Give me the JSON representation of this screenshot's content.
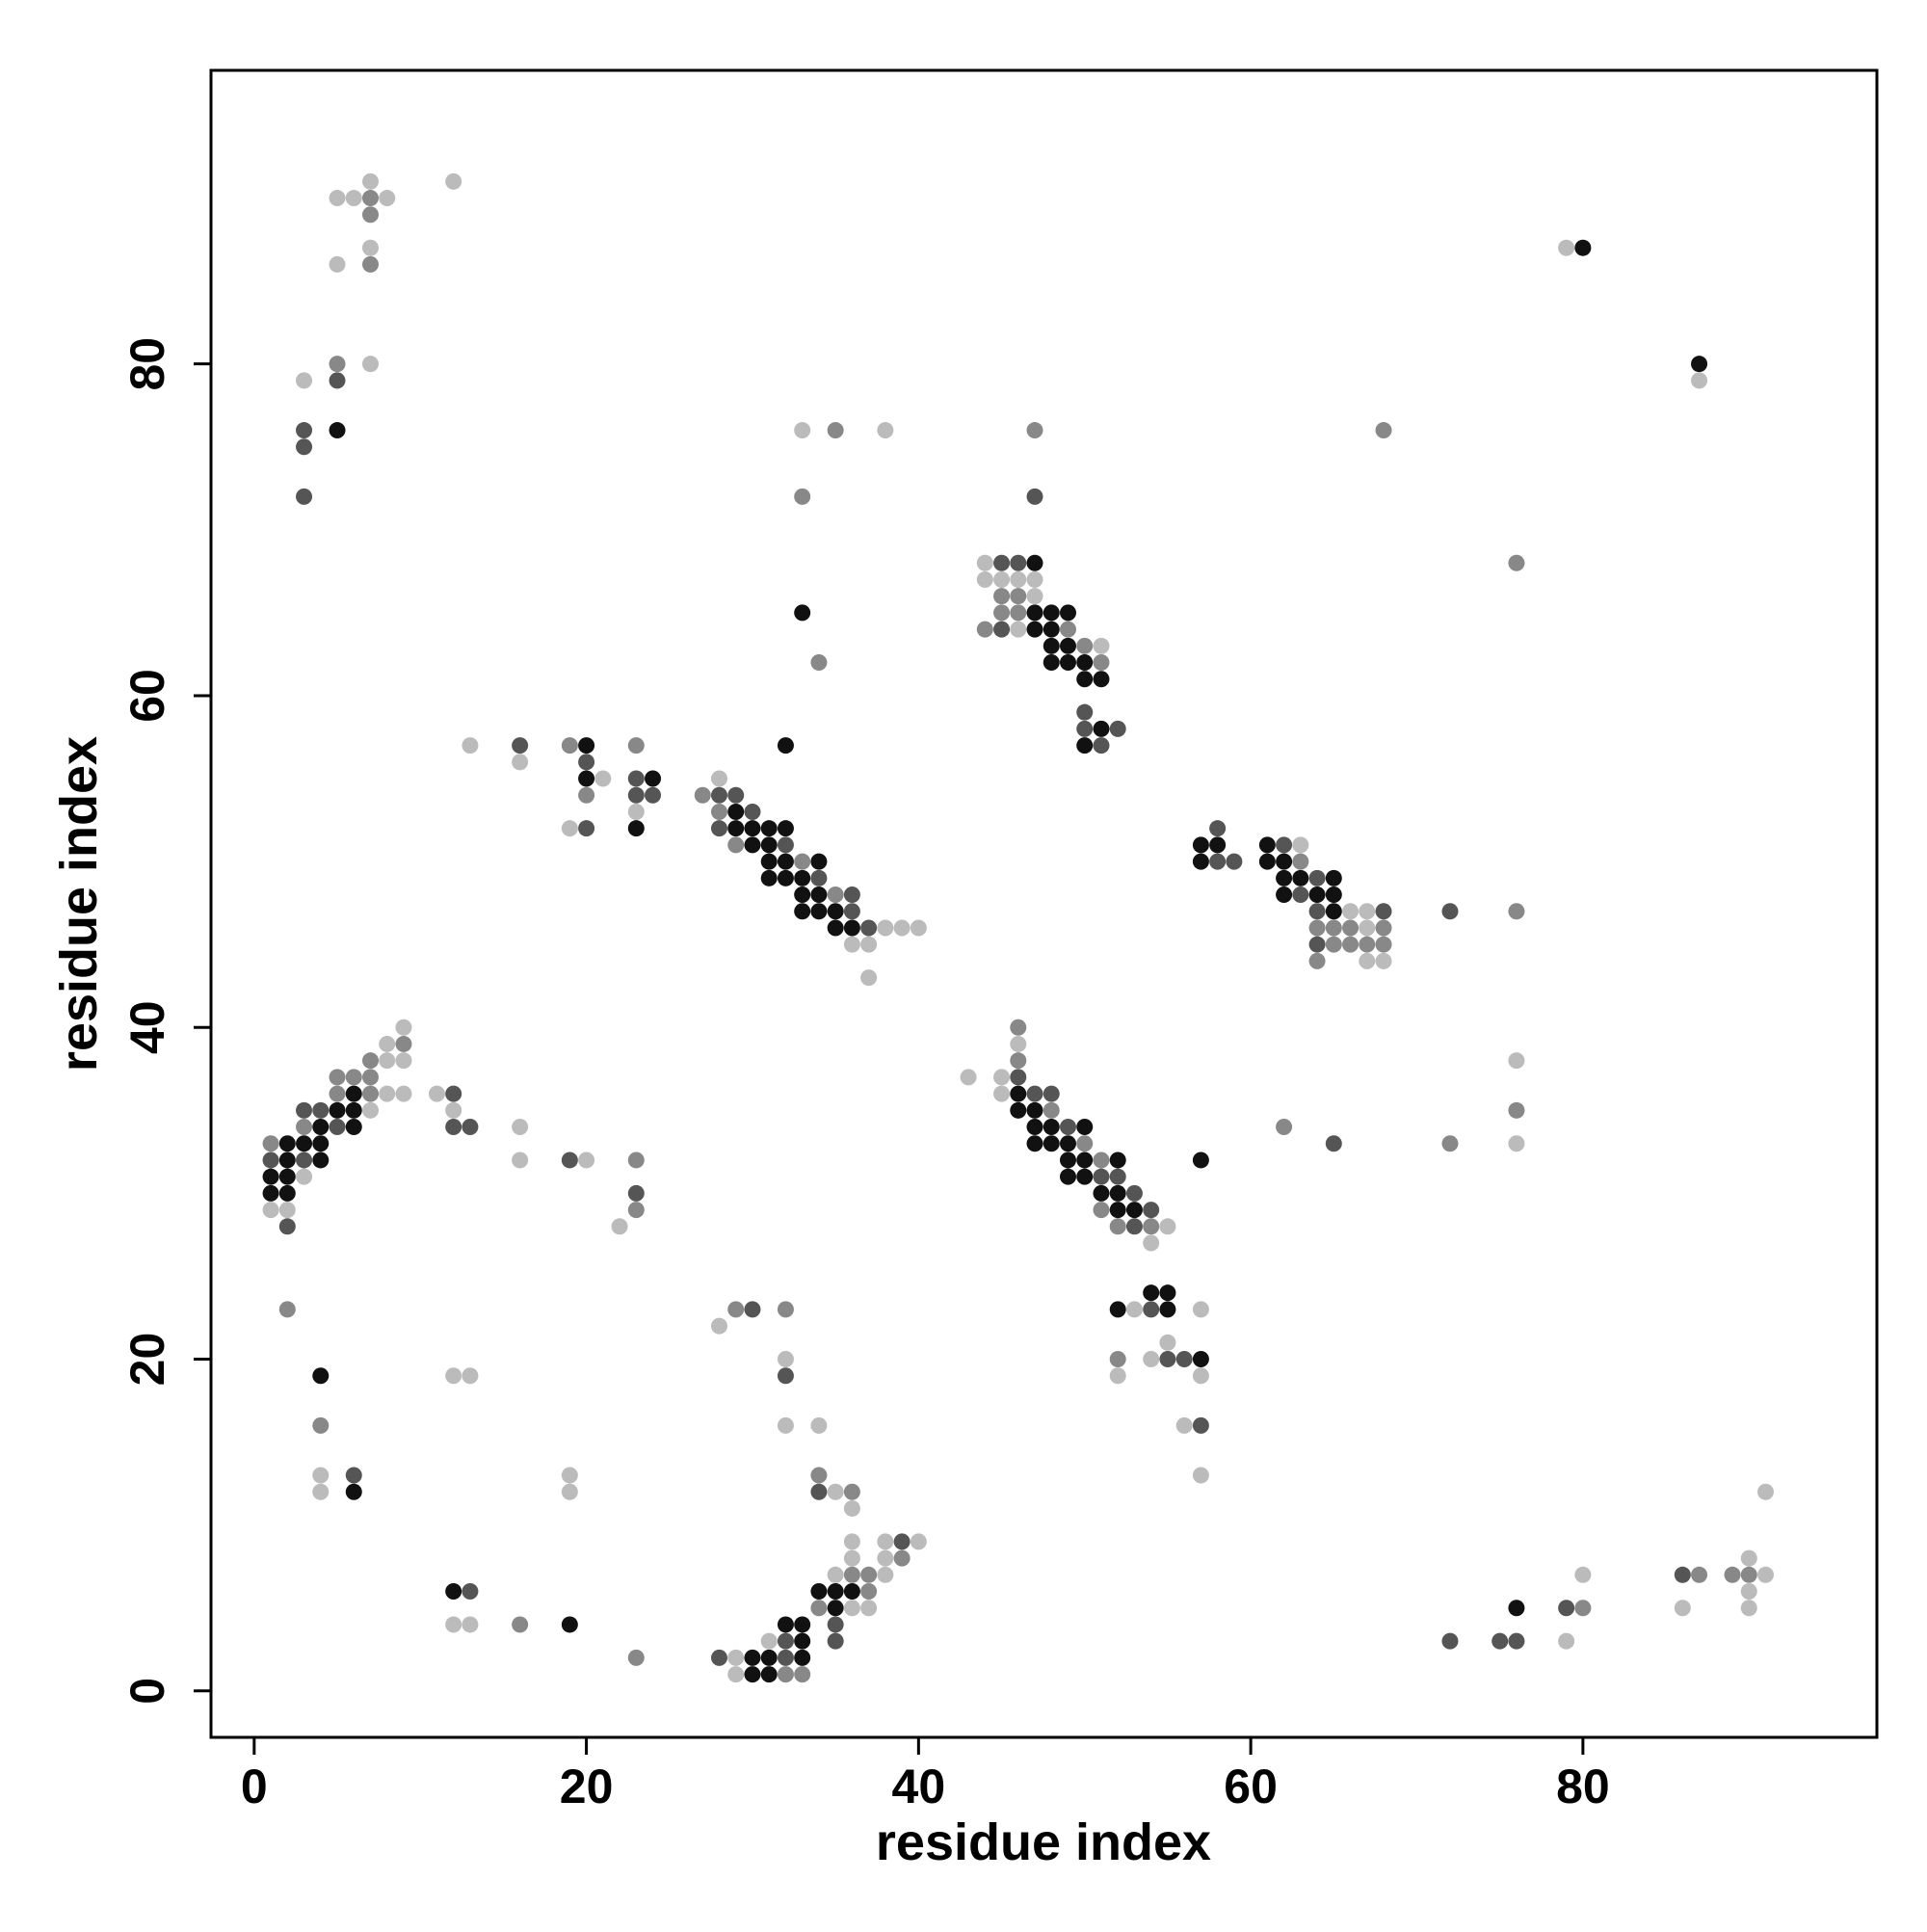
{
  "chart_data": {
    "type": "scatter",
    "xlabel": "residue index",
    "ylabel": "residue index",
    "xlim": [
      -2.6,
      97.7
    ],
    "ylim": [
      -2.8,
      97.7
    ],
    "xticks": [
      0,
      20,
      40,
      60,
      80
    ],
    "yticks": [
      0,
      20,
      40,
      60,
      80
    ],
    "series": [
      {
        "color": "#bbbbbb",
        "x": [
          5,
          6,
          8,
          7,
          12,
          7,
          5,
          7,
          3,
          79,
          87,
          33,
          38,
          44,
          44,
          45,
          46,
          47,
          47,
          46,
          51,
          13,
          16,
          21,
          23,
          19,
          28,
          38,
          39,
          40,
          36,
          37,
          37,
          63,
          66,
          67,
          67,
          67,
          68,
          9,
          8,
          8,
          9,
          8,
          9,
          11,
          7,
          12,
          16,
          16,
          20,
          3,
          1,
          2,
          22,
          46,
          43,
          45,
          45,
          76,
          76,
          55,
          54,
          53,
          57,
          55,
          54,
          52,
          57,
          56,
          57,
          28,
          32,
          12,
          13,
          32,
          34,
          4,
          19,
          4,
          19,
          35,
          36,
          36,
          38,
          40,
          36,
          38,
          35,
          38,
          36,
          37,
          12,
          13,
          31,
          29,
          29,
          80,
          91,
          90,
          90,
          86,
          90,
          79,
          91
        ],
        "values": [
          90,
          90,
          90,
          91,
          91,
          87,
          86,
          80,
          79,
          87,
          79,
          76,
          76,
          68,
          67,
          67,
          67,
          67,
          66,
          64,
          63,
          57,
          56,
          55,
          53,
          52,
          55,
          46,
          46,
          46,
          45,
          45,
          43,
          51,
          47,
          47,
          46,
          44,
          44,
          40,
          39,
          38,
          38,
          36,
          36,
          36,
          35,
          35,
          34,
          32,
          32,
          31,
          29,
          29,
          28,
          39,
          37,
          37,
          36,
          38,
          33,
          28,
          27,
          23,
          23,
          21,
          20,
          19,
          19,
          16,
          13,
          22,
          20,
          19,
          19,
          16,
          16,
          13,
          13,
          12,
          12,
          12,
          11,
          9,
          9,
          9,
          8,
          8,
          7,
          7,
          5,
          5,
          4,
          4,
          3,
          2,
          1,
          7,
          7,
          8,
          6,
          5,
          5,
          3,
          12
        ]
      },
      {
        "color": "#888888",
        "x": [
          7,
          7,
          7,
          5,
          35,
          47,
          68,
          33,
          76,
          34,
          45,
          46,
          45,
          46,
          44,
          49,
          50,
          51,
          19,
          23,
          20,
          27,
          28,
          29,
          33,
          35,
          63,
          76,
          64,
          65,
          66,
          68,
          65,
          66,
          67,
          68,
          64,
          9,
          7,
          5,
          6,
          7,
          5,
          7,
          3,
          1,
          23,
          23,
          46,
          46,
          48,
          50,
          62,
          72,
          76,
          51,
          51,
          52,
          54,
          2,
          29,
          32,
          52,
          4,
          34,
          36,
          39,
          36,
          37,
          37,
          34,
          16,
          23,
          32,
          33,
          80,
          87,
          89,
          90
        ],
        "values": [
          90,
          89,
          86,
          80,
          76,
          76,
          76,
          72,
          68,
          62,
          66,
          66,
          65,
          65,
          64,
          64,
          63,
          62,
          57,
          57,
          54,
          54,
          53,
          51,
          50,
          48,
          50,
          47,
          46,
          46,
          46,
          46,
          45,
          45,
          45,
          45,
          44,
          39,
          38,
          37,
          37,
          37,
          36,
          36,
          34,
          33,
          32,
          29,
          40,
          38,
          35,
          33,
          34,
          33,
          35,
          32,
          29,
          28,
          28,
          23,
          23,
          23,
          20,
          16,
          13,
          12,
          8,
          7,
          7,
          6,
          5,
          4,
          2,
          1,
          1,
          5,
          7,
          7,
          7
        ]
      },
      {
        "color": "#555555",
        "x": [
          3,
          3,
          3,
          5,
          47,
          45,
          46,
          45,
          50,
          50,
          52,
          51,
          16,
          20,
          23,
          23,
          24,
          20,
          28,
          29,
          30,
          28,
          32,
          34,
          36,
          36,
          37,
          58,
          62,
          58,
          59,
          64,
          63,
          64,
          68,
          72,
          64,
          3,
          4,
          5,
          12,
          12,
          13,
          1,
          3,
          19,
          23,
          2,
          46,
          47,
          48,
          49,
          65,
          51,
          52,
          53,
          54,
          53,
          54,
          55,
          56,
          57,
          30,
          32,
          6,
          34,
          39,
          13,
          35,
          32,
          35,
          28,
          32,
          79,
          72,
          75,
          76,
          86
        ],
        "values": [
          76,
          75,
          72,
          79,
          72,
          68,
          68,
          64,
          59,
          58,
          58,
          57,
          57,
          56,
          55,
          54,
          54,
          52,
          54,
          54,
          53,
          52,
          51,
          49,
          48,
          47,
          46,
          52,
          51,
          50,
          50,
          49,
          48,
          47,
          47,
          47,
          45,
          35,
          35,
          34,
          36,
          34,
          34,
          32,
          32,
          32,
          30,
          28,
          37,
          36,
          36,
          34,
          33,
          31,
          31,
          30,
          29,
          28,
          23,
          20,
          20,
          16,
          23,
          19,
          13,
          12,
          9,
          6,
          4,
          3,
          3,
          2,
          2,
          5,
          3,
          3,
          3,
          7
        ]
      },
      {
        "color": "#111111",
        "x": [
          5,
          80,
          87,
          33,
          47,
          47,
          48,
          49,
          47,
          48,
          48,
          49,
          48,
          49,
          50,
          50,
          51,
          51,
          50,
          20,
          32,
          20,
          24,
          23,
          29,
          29,
          30,
          31,
          32,
          30,
          31,
          31,
          32,
          34,
          31,
          32,
          33,
          33,
          34,
          33,
          34,
          35,
          35,
          36,
          57,
          58,
          61,
          57,
          61,
          62,
          62,
          63,
          65,
          62,
          64,
          65,
          65,
          6,
          5,
          6,
          4,
          6,
          2,
          3,
          4,
          2,
          4,
          1,
          2,
          1,
          2,
          46,
          46,
          47,
          47,
          48,
          50,
          47,
          48,
          49,
          49,
          50,
          52,
          57,
          49,
          50,
          51,
          52,
          52,
          53,
          54,
          55,
          52,
          55,
          57,
          4,
          6,
          12,
          34,
          35,
          36,
          35,
          19,
          32,
          33,
          33,
          30,
          31,
          33,
          30,
          31,
          76
        ],
        "values": [
          76,
          87,
          80,
          65,
          68,
          65,
          65,
          65,
          64,
          64,
          63,
          63,
          62,
          62,
          62,
          61,
          61,
          58,
          57,
          57,
          57,
          55,
          55,
          52,
          53,
          52,
          52,
          52,
          52,
          51,
          51,
          50,
          50,
          50,
          49,
          49,
          49,
          48,
          48,
          47,
          47,
          47,
          46,
          46,
          51,
          51,
          51,
          50,
          50,
          50,
          49,
          49,
          49,
          48,
          48,
          48,
          47,
          36,
          35,
          35,
          34,
          34,
          33,
          33,
          33,
          32,
          32,
          31,
          31,
          30,
          30,
          36,
          35,
          35,
          34,
          34,
          34,
          33,
          33,
          33,
          32,
          32,
          32,
          32,
          31,
          31,
          30,
          30,
          29,
          29,
          24,
          24,
          23,
          23,
          20,
          19,
          12,
          6,
          6,
          6,
          6,
          5,
          4,
          4,
          4,
          3,
          2,
          2,
          2,
          1,
          1,
          5
        ]
      }
    ]
  }
}
